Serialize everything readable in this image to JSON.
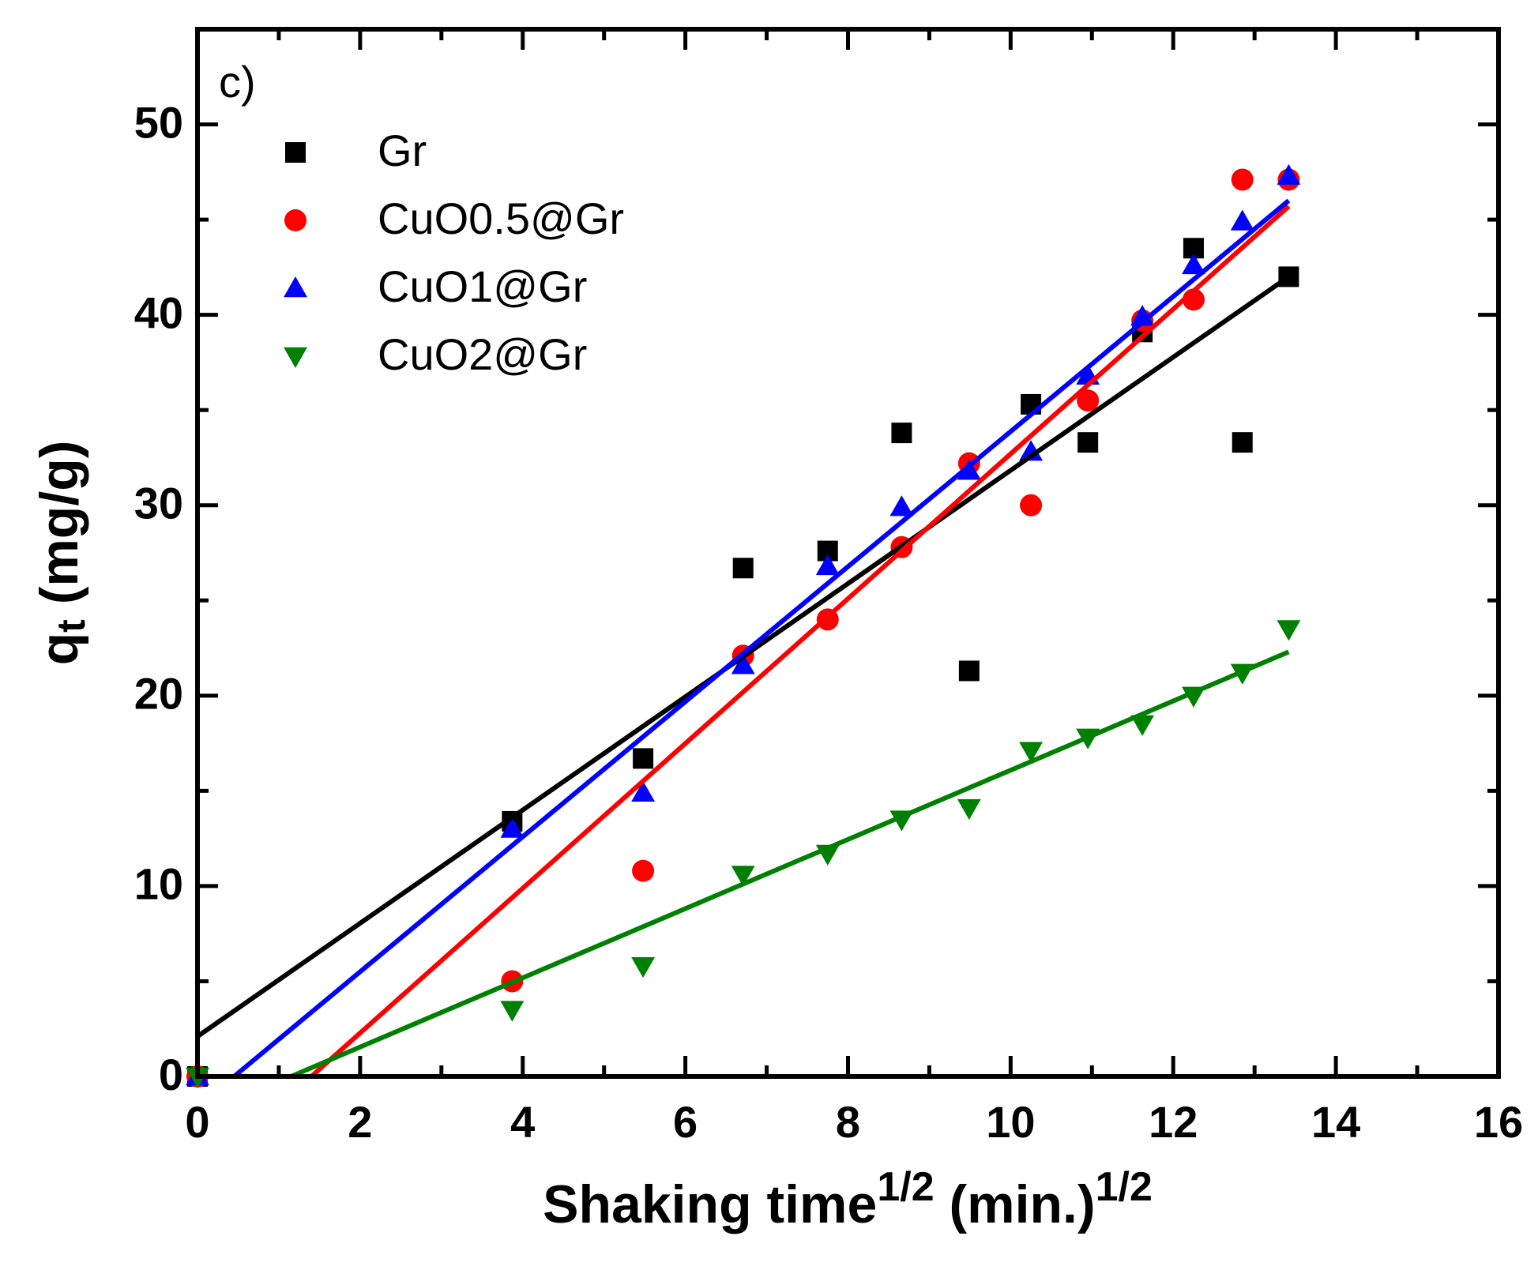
{
  "chart_data": {
    "type": "scatter",
    "annotation": "c)",
    "x_label": [
      "Shaking time",
      "1/2",
      " (min.)",
      "1/2"
    ],
    "y_label": [
      "q",
      "t",
      " (mg/g)"
    ],
    "xlim": [
      0,
      16
    ],
    "xticks": [
      0,
      2,
      4,
      6,
      8,
      10,
      12,
      14,
      16
    ],
    "ylim": [
      0,
      55
    ],
    "yticks": [
      0,
      10,
      20,
      30,
      40,
      50
    ],
    "x": [
      0,
      3.87,
      5.48,
      6.71,
      7.75,
      8.66,
      9.49,
      10.25,
      10.95,
      11.62,
      12.25,
      12.85,
      13.42
    ],
    "series": [
      {
        "name": "Gr",
        "color": "#000000",
        "marker": "square",
        "values": [
          0,
          13.4,
          16.7,
          26.7,
          27.6,
          33.8,
          21.3,
          35.3,
          33.3,
          39.1,
          43.5,
          33.3,
          42.0
        ],
        "fit_x": [
          0,
          13.42
        ],
        "fit_y": [
          2.1,
          42.0
        ]
      },
      {
        "name": "CuO0.5@Gr",
        "color": "#ff0000",
        "marker": "circle",
        "values": [
          0,
          5.0,
          10.8,
          22.1,
          24.0,
          27.8,
          32.2,
          30.0,
          35.5,
          39.7,
          40.8,
          47.1,
          47.1
        ],
        "fit_x": [
          1.4,
          13.42
        ],
        "fit_y": [
          0,
          45.7
        ]
      },
      {
        "name": "CuO1@Gr",
        "color": "#0000ff",
        "marker": "triangle-up",
        "values": [
          0,
          13.0,
          14.9,
          21.6,
          26.8,
          29.9,
          31.8,
          32.8,
          36.8,
          39.9,
          42.6,
          44.9,
          47.3
        ],
        "fit_x": [
          0.45,
          13.42
        ],
        "fit_y": [
          0,
          46.0
        ]
      },
      {
        "name": "CuO2@Gr",
        "color": "#008000",
        "marker": "triangle-down",
        "values": [
          0,
          3.5,
          5.8,
          10.6,
          11.7,
          13.5,
          14.1,
          17.1,
          17.8,
          18.5,
          20.0,
          21.2,
          23.5
        ],
        "fit_x": [
          1.15,
          13.42
        ],
        "fit_y": [
          0,
          22.3
        ]
      }
    ]
  }
}
